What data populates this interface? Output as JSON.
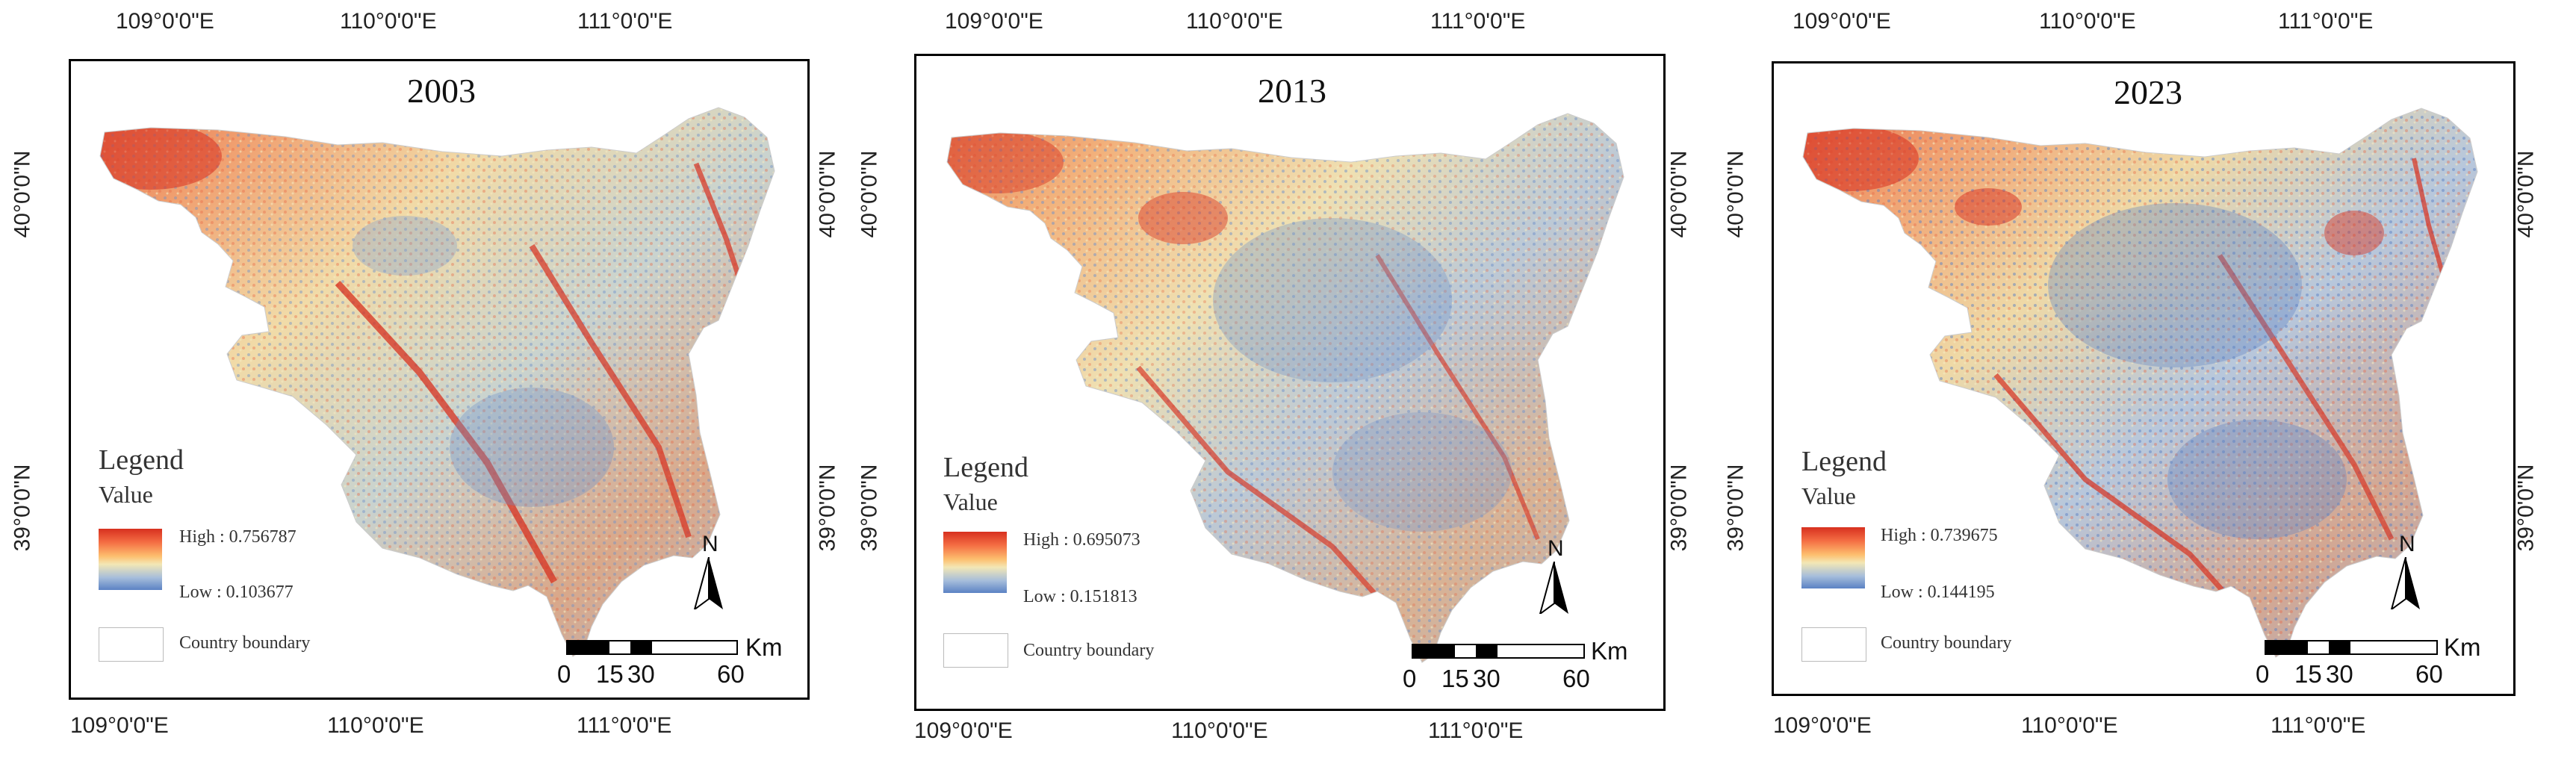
{
  "panels": [
    {
      "year": "2003",
      "lon_labels": [
        "109°0'0\"E",
        "110°0'0\"E",
        "111°0'0\"E"
      ],
      "lat_labels": [
        "40°0'0\"N",
        "39°0'0\"N"
      ],
      "legend": {
        "title": "Legend",
        "subtitle": "Value",
        "high": "High : 0.756787",
        "low": "Low : 0.103677",
        "boundary": "Country boundary"
      }
    },
    {
      "year": "2013",
      "lon_labels": [
        "109°0'0\"E",
        "110°0'0\"E",
        "111°0'0\"E"
      ],
      "lat_labels": [
        "40°0'0\"N",
        "39°0'0\"N"
      ],
      "legend": {
        "title": "Legend",
        "subtitle": "Value",
        "high": "High : 0.695073",
        "low": "Low : 0.151813",
        "boundary": "Country boundary"
      }
    },
    {
      "year": "2023",
      "lon_labels": [
        "109°0'0\"E",
        "110°0'0\"E",
        "111°0'0\"E"
      ],
      "lat_labels": [
        "40°0'0\"N",
        "39°0'0\"N"
      ],
      "legend": {
        "title": "Legend",
        "subtitle": "Value",
        "high": "High : 0.739675",
        "low": "Low : 0.144195",
        "boundary": "Country boundary"
      }
    }
  ],
  "north_label": "N",
  "scale": {
    "ticks": [
      "0",
      "15",
      "30",
      "60"
    ],
    "unit": "Km"
  },
  "colors": {
    "high": "#d7301f",
    "mid": "#f3e7b5",
    "low": "#5b82c4"
  }
}
